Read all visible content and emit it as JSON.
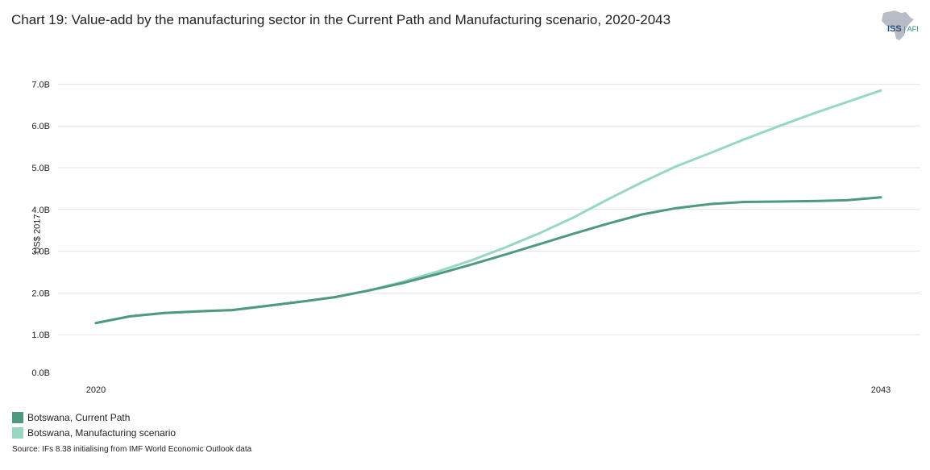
{
  "chart_data": {
    "type": "line",
    "title": "Chart 19: Value-add by the manufacturing sector in the Current Path and Manufacturing scenario, 2020-2043",
    "ylabel": "US$ 2017",
    "xlabel": "",
    "x": [
      2020,
      2021,
      2022,
      2023,
      2024,
      2025,
      2026,
      2027,
      2028,
      2029,
      2030,
      2031,
      2032,
      2033,
      2034,
      2035,
      2036,
      2037,
      2038,
      2039,
      2040,
      2041,
      2042,
      2043
    ],
    "x_tick_labels": [
      "2020",
      "2043"
    ],
    "y_ticks": [
      0,
      1,
      2,
      3,
      4,
      5,
      6,
      7
    ],
    "y_tick_labels": [
      "0.0B",
      "1.0B",
      "2.0B",
      "3.0B",
      "4.0B",
      "5.0B",
      "6.0B",
      "7.0B"
    ],
    "ylim": [
      0,
      7.3
    ],
    "grid": true,
    "legend_position": "bottom-left",
    "series": [
      {
        "name": "Botswana, Current Path",
        "color": "#4e9a80",
        "values": [
          1.28,
          1.44,
          1.52,
          1.56,
          1.59,
          1.69,
          1.79,
          1.9,
          2.06,
          2.24,
          2.45,
          2.68,
          2.92,
          3.17,
          3.42,
          3.66,
          3.88,
          4.03,
          4.13,
          4.18,
          4.19,
          4.2,
          4.22,
          4.29
        ]
      },
      {
        "name": "Botswana, Manufacturing scenario",
        "color": "#96d8c2",
        "values": [
          1.28,
          1.44,
          1.52,
          1.56,
          1.59,
          1.69,
          1.79,
          1.9,
          2.06,
          2.27,
          2.51,
          2.78,
          3.09,
          3.43,
          3.81,
          4.24,
          4.65,
          5.03,
          5.35,
          5.68,
          5.99,
          6.29,
          6.57,
          6.85
        ]
      }
    ]
  },
  "logo": {
    "main": "ISS",
    "sub": "AFI"
  },
  "source": "Source: IFs 8.38 initialising from IMF World Economic Outlook data"
}
